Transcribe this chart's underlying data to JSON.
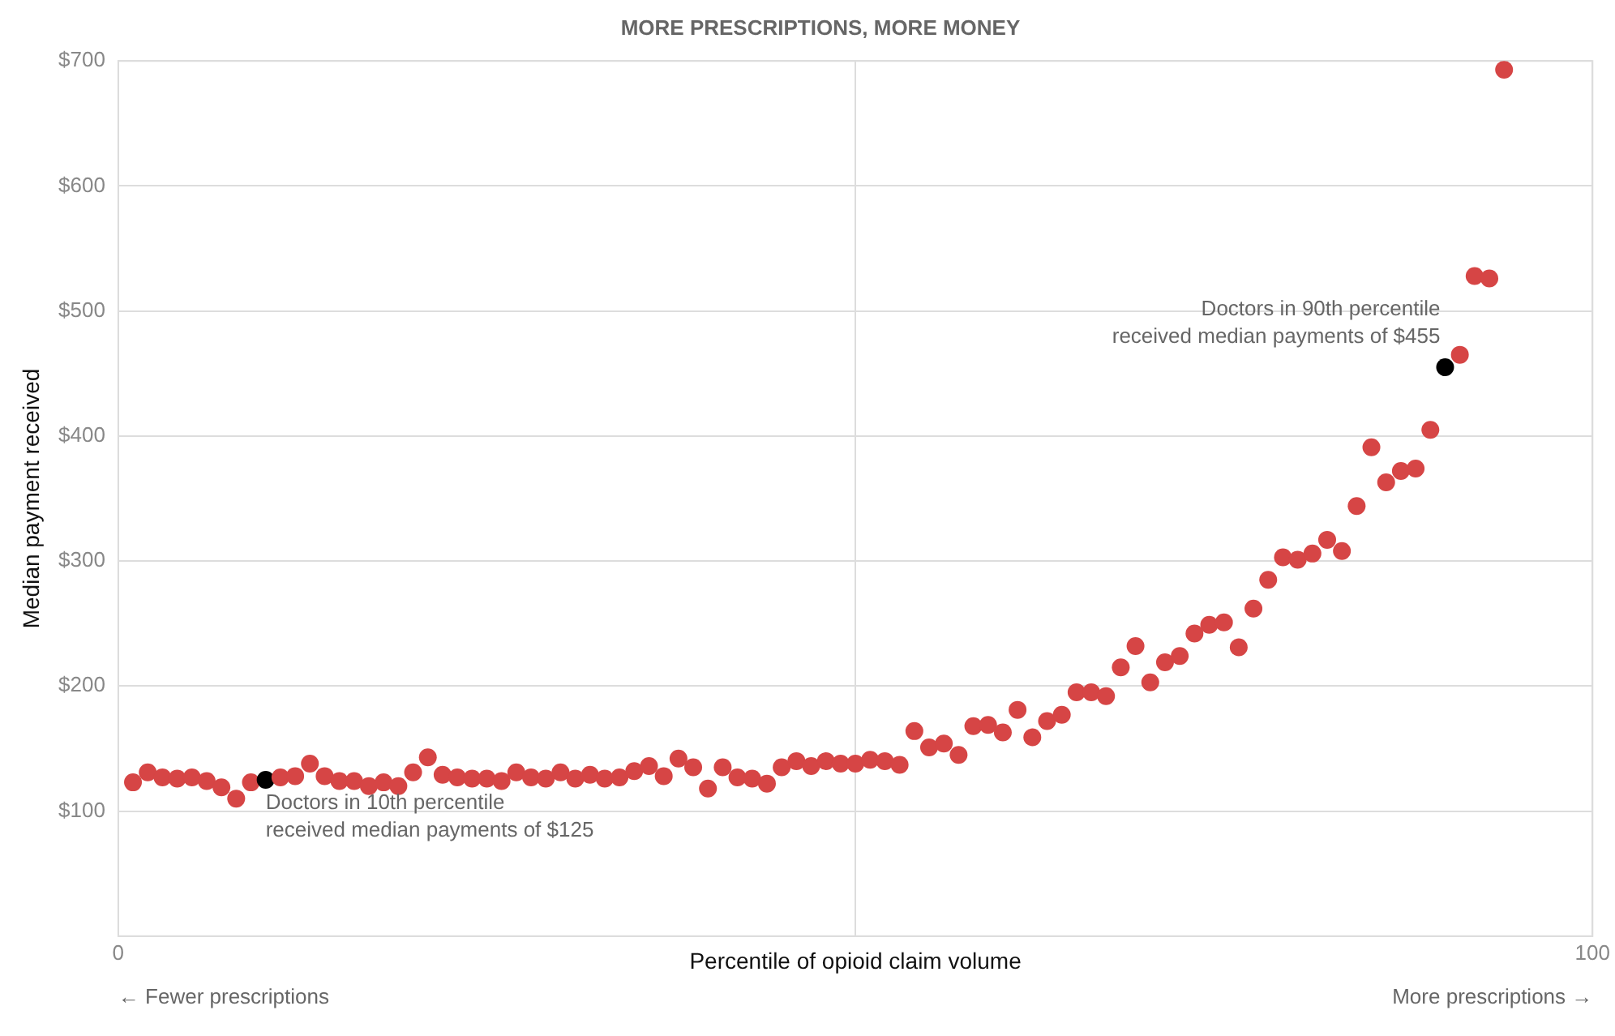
{
  "chart_data": {
    "type": "scatter",
    "title": "MORE PRESCRIPTIONS, MORE MONEY",
    "xlabel": "Percentile of opioid claim volume",
    "ylabel": "Median payment received",
    "x": [
      1,
      2,
      3,
      4,
      5,
      6,
      7,
      8,
      9,
      10,
      11,
      12,
      13,
      14,
      15,
      16,
      17,
      18,
      19,
      20,
      21,
      22,
      23,
      24,
      25,
      26,
      27,
      28,
      29,
      30,
      31,
      32,
      33,
      34,
      35,
      36,
      37,
      38,
      39,
      40,
      41,
      42,
      43,
      44,
      45,
      46,
      47,
      48,
      49,
      50,
      51,
      52,
      53,
      54,
      55,
      56,
      57,
      58,
      59,
      60,
      61,
      62,
      63,
      64,
      65,
      66,
      67,
      68,
      69,
      70,
      71,
      72,
      73,
      74,
      75,
      76,
      77,
      78,
      79,
      80,
      81,
      82,
      83,
      84,
      85,
      86,
      87,
      88,
      89,
      90,
      91,
      92,
      93,
      94
    ],
    "series": [
      {
        "values": [
          123,
          131,
          127,
          126,
          127,
          124,
          119,
          110,
          123,
          125,
          127,
          128,
          138,
          128,
          124,
          124,
          120,
          123,
          120,
          131,
          143,
          129,
          127,
          126,
          126,
          124,
          131,
          127,
          126,
          131,
          126,
          129,
          126,
          127,
          132,
          136,
          128,
          142,
          135,
          118,
          135,
          127,
          126,
          122,
          135,
          140,
          136,
          140,
          138,
          138,
          141,
          140,
          137,
          164,
          151,
          154,
          145,
          168,
          169,
          163,
          181,
          159,
          172,
          177,
          195,
          195,
          192,
          215,
          232,
          203,
          219,
          224,
          242,
          249,
          251,
          231,
          262,
          285,
          303,
          301,
          306,
          317,
          308,
          344,
          391,
          363,
          372,
          374,
          405,
          455,
          465,
          528,
          526,
          693
        ],
        "colors": [
          "#d64545",
          "#d64545",
          "#d64545",
          "#d64545",
          "#d64545",
          "#d64545",
          "#d64545",
          "#d64545",
          "#d64545",
          "#000000",
          "#d64545",
          "#d64545",
          "#d64545",
          "#d64545",
          "#d64545",
          "#d64545",
          "#d64545",
          "#d64545",
          "#d64545",
          "#d64545",
          "#d64545",
          "#d64545",
          "#d64545",
          "#d64545",
          "#d64545",
          "#d64545",
          "#d64545",
          "#d64545",
          "#d64545",
          "#d64545",
          "#d64545",
          "#d64545",
          "#d64545",
          "#d64545",
          "#d64545",
          "#d64545",
          "#d64545",
          "#d64545",
          "#d64545",
          "#d64545",
          "#d64545",
          "#d64545",
          "#d64545",
          "#d64545",
          "#d64545",
          "#d64545",
          "#d64545",
          "#d64545",
          "#d64545",
          "#d64545",
          "#d64545",
          "#d64545",
          "#d64545",
          "#d64545",
          "#d64545",
          "#d64545",
          "#d64545",
          "#d64545",
          "#d64545",
          "#d64545",
          "#d64545",
          "#d64545",
          "#d64545",
          "#d64545",
          "#d64545",
          "#d64545",
          "#d64545",
          "#d64545",
          "#d64545",
          "#d64545",
          "#d64545",
          "#d64545",
          "#d64545",
          "#d64545",
          "#d64545",
          "#d64545",
          "#d64545",
          "#d64545",
          "#d64545",
          "#d64545",
          "#d64545",
          "#d64545",
          "#d64545",
          "#d64545",
          "#d64545",
          "#d64545",
          "#d64545",
          "#d64545",
          "#d64545",
          "#000000",
          "#d64545",
          "#d64545",
          "#d64545",
          "#d64545"
        ]
      }
    ],
    "xlim": [
      0,
      100
    ],
    "xticks": [
      0,
      {
        "value": 50,
        "label": null
      },
      100
    ],
    "ylim": [
      0,
      700
    ],
    "yticks": [
      {
        "value": 100,
        "label": "$100"
      },
      {
        "value": 200,
        "label": "$200"
      },
      {
        "value": 300,
        "label": "$300"
      },
      {
        "value": 400,
        "label": "$400"
      },
      {
        "value": 500,
        "label": "$500"
      },
      {
        "value": 600,
        "label": "$600"
      },
      {
        "value": 700,
        "label": "$700"
      }
    ],
    "grid": true,
    "legend": false,
    "marker": "circle",
    "annotations": [
      {
        "text": "Doctors in 10th percentile\nreceived median payments of $125",
        "x": 10,
        "y": 125
      },
      {
        "text": "Doctors in 90th percentile\nreceived median payments of $455",
        "x": 90,
        "y": 455
      },
      "← Fewer prescriptions",
      "More prescriptions →"
    ]
  }
}
